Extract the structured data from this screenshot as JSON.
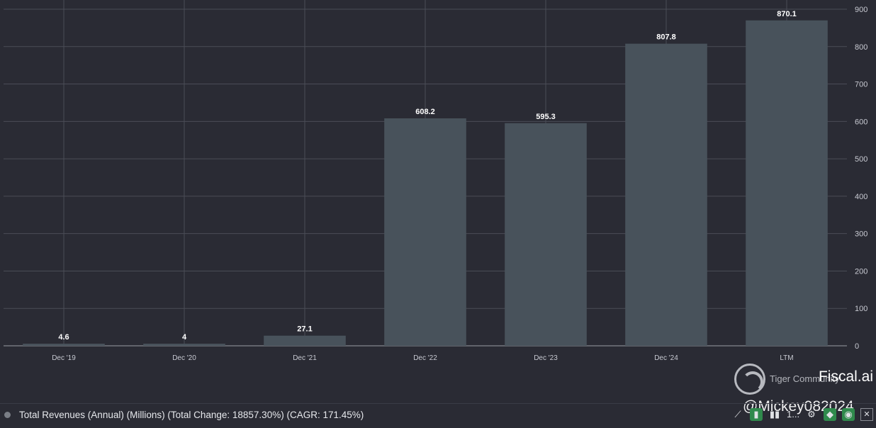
{
  "chart_data": {
    "type": "bar",
    "categories": [
      "Dec '19",
      "Dec '20",
      "Dec '21",
      "Dec '22",
      "Dec '23",
      "Dec '24",
      "LTM"
    ],
    "values": [
      4.6,
      4,
      27.1,
      608.2,
      595.3,
      807.8,
      870.1
    ],
    "data_labels": [
      "4.6",
      "4",
      "27.1",
      "608.2",
      "595.3",
      "807.8",
      "870.1"
    ],
    "ylim": [
      0,
      900
    ],
    "yticks": [
      0,
      100,
      200,
      300,
      400,
      500,
      600,
      700,
      800,
      900
    ],
    "y_axis_side": "right",
    "grid": true,
    "colors": {
      "bar": "#48525b",
      "background": "#2a2b34"
    }
  },
  "legend": {
    "label": "Total Revenues (Annual) (Millions) (Total Change: 18857.30%) (CAGR: 171.45%)"
  },
  "branding": {
    "site": "Fiscal.ai",
    "community": "Tiger Community",
    "watermark": "@Mickey082024"
  },
  "toolbar": {
    "icons": [
      "trend-icon",
      "bar-chart-icon",
      "column-chart-icon",
      "more-icon",
      "gear-icon",
      "tag-icon",
      "eye-icon",
      "close-icon"
    ],
    "more_label": "1..."
  }
}
